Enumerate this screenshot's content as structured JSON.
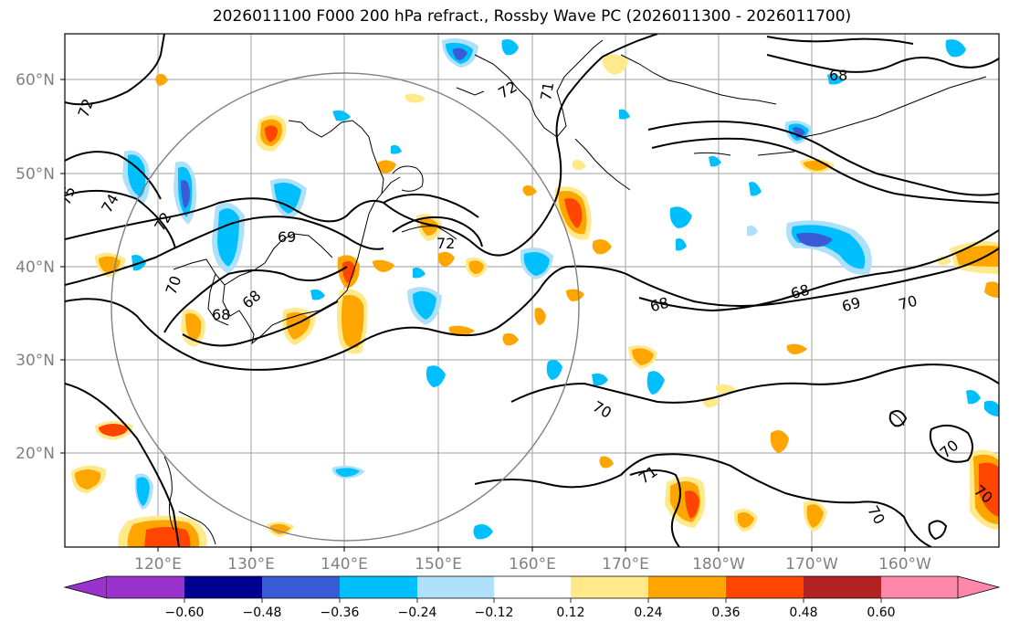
{
  "title": "2026011100 F000 200 hPa refract., Rossby Wave PC (2026011300 - 2026011700)",
  "lat_labels": [
    "60°N",
    "50°N",
    "40°N",
    "30°N",
    "20°N"
  ],
  "lon_labels": [
    "120°E",
    "130°E",
    "140°E",
    "150°E",
    "160°E",
    "170°E",
    "180°W",
    "170°W",
    "160°W"
  ],
  "contour_labels": [
    "72",
    "71",
    "68",
    "72",
    "75",
    "74",
    "72",
    "69",
    "70",
    "68",
    "68",
    "72",
    "68",
    "69",
    "70",
    "68",
    "70",
    "71",
    "70",
    "70",
    "70"
  ],
  "colorbar": {
    "ticks": [
      "−0.60",
      "−0.48",
      "−0.36",
      "−0.24",
      "−0.12",
      "0.12",
      "0.24",
      "0.36",
      "0.48",
      "0.60"
    ],
    "colors": [
      "#9933cc",
      "#000090",
      "#3a5bd6",
      "#00bfff",
      "#aee0fa",
      "#ffffff",
      "#ffe98a",
      "#ffa500",
      "#ff4500",
      "#b22222",
      "#ff88aa"
    ]
  }
}
